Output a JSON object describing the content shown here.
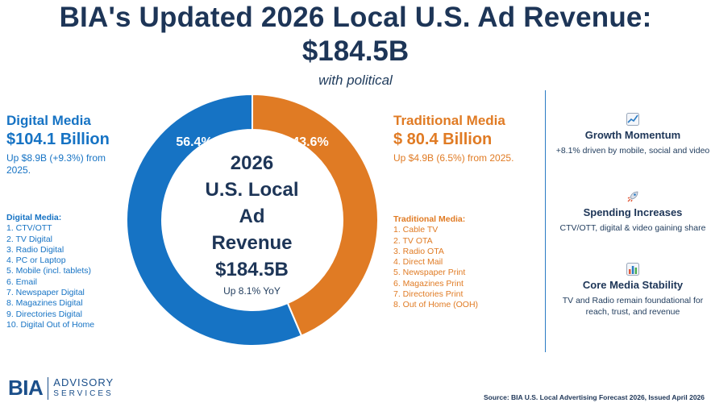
{
  "title": {
    "line1": "BIA's Updated 2026 Local U.S. Ad Revenue:",
    "line2": "$184.5B",
    "subtitle": "with political"
  },
  "digital": {
    "heading": "Digital Media",
    "amount": "$104.1 Billion",
    "change": "Up $8.9B (+9.3%) from 2025.",
    "list_title": "Digital Media:",
    "items": [
      "1.  CTV/OTT",
      "2.  TV Digital",
      "3.  Radio Digital",
      "4.  PC or Laptop",
      "5.  Mobile  (incl. tablets)",
      "6.  Email",
      "7.  Newspaper Digital",
      "8.  Magazines Digital",
      "9.  Directories Digital",
      "10. Digital Out of Home"
    ]
  },
  "traditional": {
    "heading": "Traditional Media",
    "amount": "$ 80.4 Billion",
    "change": "Up $4.9B (6.5%) from 2025.",
    "list_title": "Traditional Media:",
    "items": [
      "1.  Cable TV",
      "2.  TV OTA",
      "3.  Radio OTA",
      "4.  Direct Mail",
      "5.  Newspaper Print",
      "6.  Magazines Print",
      "7.  Directories Print",
      "8.  Out of Home (OOH)"
    ]
  },
  "chart_data": {
    "type": "pie",
    "style": "donut",
    "categories": [
      "Digital Media",
      "Traditional Media"
    ],
    "values": [
      56.4,
      43.6
    ],
    "labels": [
      "56.4%",
      "43.6%"
    ],
    "colors": [
      "#1673c4",
      "#e07b24"
    ],
    "center": {
      "lines": [
        "2026",
        "U.S. Local",
        "Ad",
        "Revenue",
        "$184.5B"
      ],
      "subtext": "Up 8.1% YoY"
    }
  },
  "panel": [
    {
      "icon": "chart-up-icon",
      "title": "Growth Momentum",
      "text": "+8.1% driven by mobile, social and video"
    },
    {
      "icon": "rocket-icon",
      "title": "Spending Increases",
      "text": "CTV/OTT, digital & video gaining share"
    },
    {
      "icon": "bar-chart-icon",
      "title": "Core Media Stability",
      "text": "TV and Radio remain foundational for reach, trust, and revenue"
    }
  ],
  "footer": {
    "logo_mark": "BIA",
    "logo_word1": "ADVISORY",
    "logo_word2": "SERVICES",
    "source": "Source: BIA U.S. Local Advertising Forecast 2026, Issued April 2026"
  }
}
